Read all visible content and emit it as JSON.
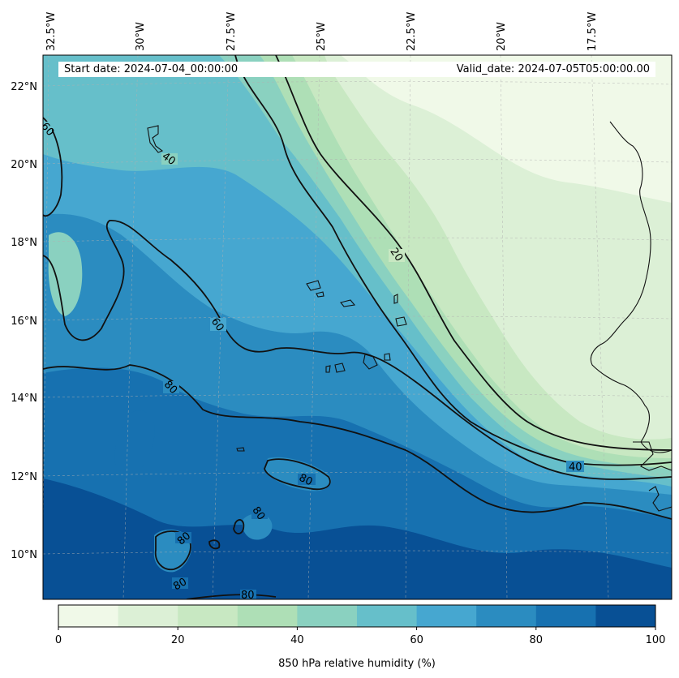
{
  "map": {
    "start_date": "Start date: 2024-07-04_00:00:00",
    "valid_date": "Valid_date: 2024-07-05T05:00:00.00",
    "longitude_labels": [
      "32.5°W",
      "30°W",
      "27.5°W",
      "25°W",
      "22.5°W",
      "20°W",
      "17.5°W"
    ],
    "latitude_labels": [
      "22°N",
      "20°N",
      "18°N",
      "16°N",
      "14°N",
      "12°N",
      "10°N"
    ],
    "contour_labels": [
      "60",
      "40",
      "20",
      "60",
      "80",
      "40",
      "80",
      "80",
      "80",
      "80",
      "80"
    ]
  },
  "colorbar": {
    "label": "850 hPa relative humidity (%)",
    "ticks": [
      "0",
      "20",
      "40",
      "60",
      "80",
      "100"
    ],
    "levels": [
      0,
      10,
      20,
      30,
      40,
      50,
      60,
      70,
      80,
      90,
      100
    ],
    "colors": [
      "#f0f9e8",
      "#dcf0d6",
      "#c8e8c2",
      "#aedfb6",
      "#8ad1c0",
      "#66bfca",
      "#46a7d0",
      "#2b8cc0",
      "#1771b0",
      "#085095"
    ]
  }
}
